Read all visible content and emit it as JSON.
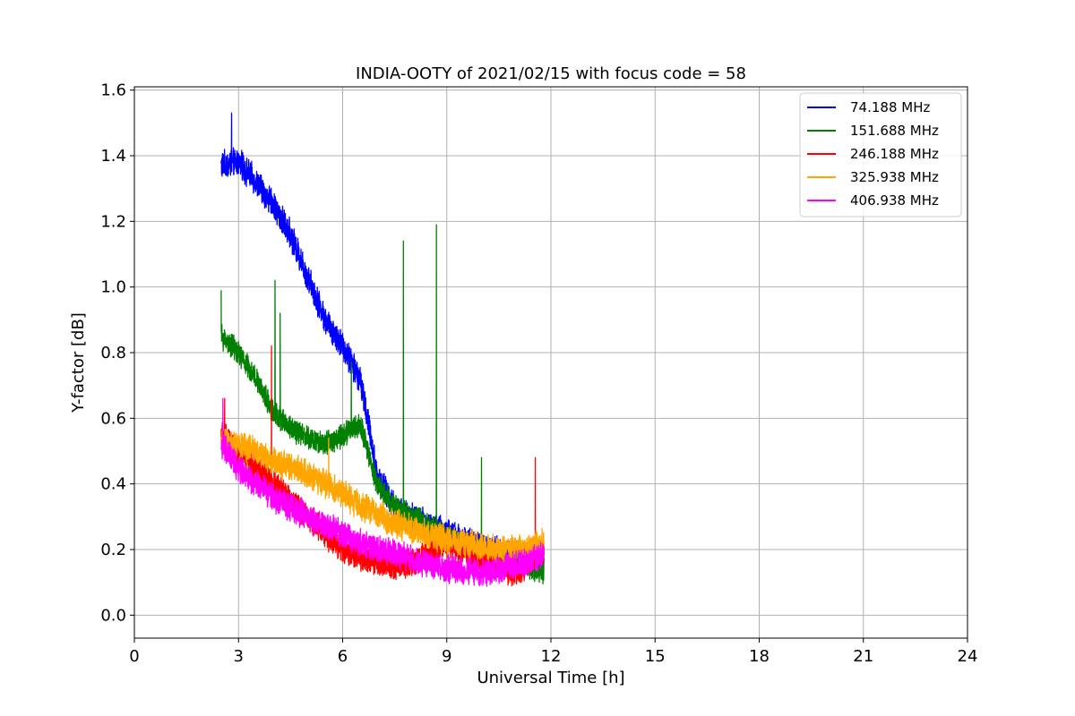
{
  "chart_data": {
    "type": "line",
    "title": "INDIA-OOTY of 2021/02/15 with focus code = 58",
    "xlabel": "Universal Time [h]",
    "ylabel": "Y-factor [dB]",
    "xlim": [
      0,
      24
    ],
    "ylim": [
      -0.07,
      1.61
    ],
    "xticks": [
      "0",
      "3",
      "6",
      "9",
      "12",
      "15",
      "18",
      "21",
      "24"
    ],
    "yticks": [
      "0.0",
      "0.2",
      "0.4",
      "0.6",
      "0.8",
      "1.0",
      "1.2",
      "1.4",
      "1.6"
    ],
    "grid": true,
    "legend_position": "top-right",
    "series": [
      {
        "name": " 74.188 MHz",
        "color": "#0000ff",
        "noise": 0.035,
        "x": [
          2.5,
          3.0,
          3.5,
          4.0,
          4.5,
          5.0,
          5.5,
          6.0,
          6.5,
          6.8,
          7.0,
          7.5,
          8.0,
          9.0,
          10.0,
          11.0,
          11.8
        ],
        "y": [
          1.37,
          1.38,
          1.32,
          1.25,
          1.16,
          1.03,
          0.9,
          0.82,
          0.72,
          0.55,
          0.42,
          0.33,
          0.3,
          0.25,
          0.21,
          0.18,
          0.16
        ],
        "spikes": [
          {
            "x": 2.8,
            "y": 1.53
          }
        ]
      },
      {
        "name": "151.688 MHz",
        "color": "#008000",
        "noise": 0.03,
        "x": [
          2.5,
          3.0,
          3.5,
          4.0,
          4.5,
          5.0,
          5.5,
          6.0,
          6.5,
          7.0,
          7.5,
          8.0,
          9.0,
          10.0,
          11.0,
          11.8
        ],
        "y": [
          0.85,
          0.8,
          0.72,
          0.62,
          0.57,
          0.54,
          0.52,
          0.55,
          0.58,
          0.4,
          0.33,
          0.3,
          0.24,
          0.19,
          0.16,
          0.13
        ],
        "spikes": [
          {
            "x": 2.5,
            "y": 0.99
          },
          {
            "x": 4.05,
            "y": 1.02
          },
          {
            "x": 4.2,
            "y": 0.92
          },
          {
            "x": 6.25,
            "y": 0.77
          },
          {
            "x": 7.75,
            "y": 1.14
          },
          {
            "x": 8.7,
            "y": 1.19
          },
          {
            "x": 10.0,
            "y": 0.48
          }
        ]
      },
      {
        "name": "246.188 MHz",
        "color": "#ff0000",
        "noise": 0.035,
        "x": [
          2.5,
          3.0,
          3.5,
          4.0,
          4.5,
          5.0,
          5.5,
          6.0,
          6.5,
          7.0,
          7.5,
          8.0,
          9.0,
          10.0,
          11.0,
          11.8
        ],
        "y": [
          0.55,
          0.5,
          0.45,
          0.4,
          0.35,
          0.3,
          0.25,
          0.2,
          0.18,
          0.16,
          0.15,
          0.16,
          0.22,
          0.16,
          0.13,
          0.2
        ],
        "spikes": [
          {
            "x": 2.6,
            "y": 0.66
          },
          {
            "x": 3.95,
            "y": 0.82
          },
          {
            "x": 11.55,
            "y": 0.48
          }
        ]
      },
      {
        "name": "325.938 MHz",
        "color": "#ffa500",
        "noise": 0.035,
        "x": [
          2.5,
          3.0,
          3.5,
          4.0,
          4.5,
          5.0,
          5.5,
          6.0,
          6.5,
          7.0,
          7.5,
          8.0,
          9.0,
          10.0,
          11.0,
          11.8
        ],
        "y": [
          0.52,
          0.52,
          0.5,
          0.47,
          0.45,
          0.43,
          0.4,
          0.37,
          0.33,
          0.31,
          0.28,
          0.26,
          0.23,
          0.21,
          0.2,
          0.22
        ],
        "spikes": [
          {
            "x": 5.6,
            "y": 0.54
          }
        ]
      },
      {
        "name": "406.938 MHz",
        "color": "#ff00ff",
        "noise": 0.035,
        "x": [
          2.5,
          3.0,
          3.5,
          4.0,
          4.5,
          5.0,
          5.5,
          6.0,
          6.5,
          7.0,
          7.5,
          8.0,
          9.0,
          10.0,
          11.0,
          11.8
        ],
        "y": [
          0.52,
          0.45,
          0.4,
          0.36,
          0.33,
          0.3,
          0.27,
          0.25,
          0.22,
          0.2,
          0.19,
          0.17,
          0.14,
          0.13,
          0.15,
          0.18
        ],
        "spikes": [
          {
            "x": 2.55,
            "y": 0.66
          }
        ]
      }
    ]
  }
}
